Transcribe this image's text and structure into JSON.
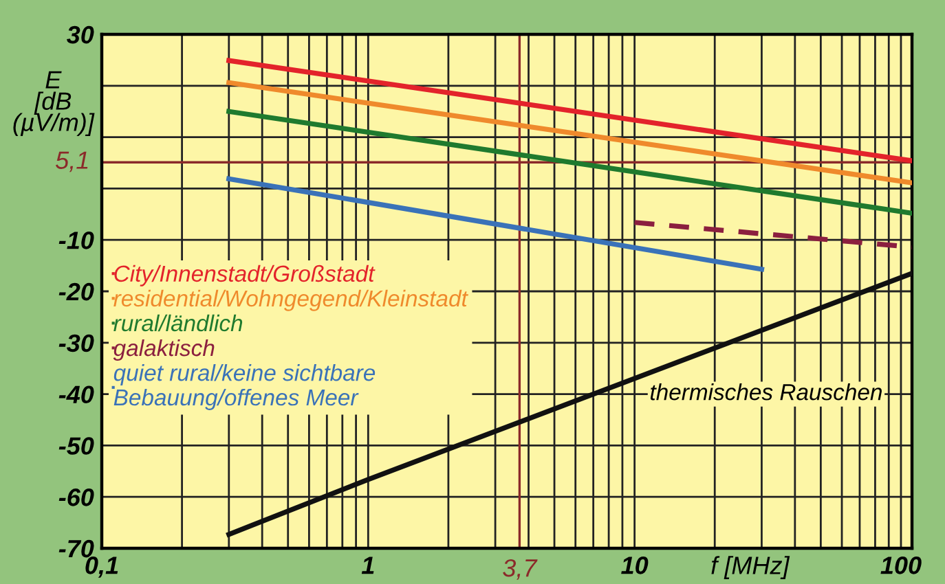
{
  "chart_data": {
    "type": "line",
    "xlabel": "f [MHz]",
    "ylabel": "E\n[dB\n(µV/m)]",
    "log": "x",
    "xlim": [
      0.1,
      110
    ],
    "ylim": [
      -70,
      30
    ],
    "xticks": [
      {
        "value": 0.1,
        "label": "0,1"
      },
      {
        "value": 0.2,
        "label": null
      },
      {
        "value": 0.3,
        "label": null
      },
      {
        "value": 0.4,
        "label": null
      },
      {
        "value": 0.5,
        "label": null
      },
      {
        "value": 0.6,
        "label": null
      },
      {
        "value": 0.7,
        "label": null
      },
      {
        "value": 0.8,
        "label": null
      },
      {
        "value": 0.9,
        "label": null
      },
      1,
      {
        "value": 2,
        "label": null
      },
      {
        "value": 3,
        "label": null
      },
      {
        "value": 4,
        "label": null
      },
      {
        "value": 5,
        "label": null
      },
      {
        "value": 6,
        "label": null
      },
      {
        "value": 7,
        "label": null
      },
      {
        "value": 8,
        "label": null
      },
      {
        "value": 9,
        "label": null
      },
      10,
      {
        "value": 20,
        "label": null
      },
      {
        "value": 30,
        "label": null
      },
      {
        "value": 40,
        "label": null
      },
      {
        "value": 50,
        "label": null
      },
      {
        "value": 60,
        "label": null
      },
      {
        "value": 70,
        "label": null
      },
      {
        "value": 80,
        "label": null
      },
      {
        "value": 90,
        "label": null
      },
      100
    ],
    "yticks": [
      30,
      {
        "value": 20,
        "label": null
      },
      {
        "value": 10,
        "label": null
      },
      {
        "value": 0,
        "label": null
      },
      -10,
      -20,
      -30,
      -40,
      -50,
      -60,
      -70
    ],
    "grid": true,
    "legend": "left",
    "marker": "none",
    "ref_lines": [
      {
        "axis": "y",
        "value": 5.1,
        "label": "5,1",
        "color": "#8b2a2a"
      },
      {
        "axis": "x",
        "value": 3.7,
        "label": "3,7",
        "color": "#8b2a2a"
      }
    ],
    "series": [
      {
        "name": "City/Innenstadt/Großstadt",
        "color": "#e3232b",
        "x": [
          0.3,
          110
        ],
        "values": [
          24.9,
          5.4
        ]
      },
      {
        "name": "residential/Wohngegend/Kleinstadt",
        "color": "#ef8a2c",
        "x": [
          0.3,
          110
        ],
        "values": [
          20.6,
          1.1
        ]
      },
      {
        "name": "rural/ländlich",
        "color": "#1f7a2e",
        "x": [
          0.3,
          110
        ],
        "values": [
          15.0,
          -4.8
        ]
      },
      {
        "name": "galaktisch",
        "color": "#8b1f3f",
        "line_style": "dashed",
        "x": [
          10,
          30,
          110
        ],
        "values": [
          -6.6,
          -8.8,
          -11.4
        ]
      },
      {
        "name": "quiet rural/keine sichtbare\nBebauung/offenes Meer",
        "color": "#3a72b8",
        "x": [
          0.3,
          30
        ],
        "values": [
          1.9,
          -15.7
        ]
      },
      {
        "color": "#111111",
        "x": [
          0.3,
          1,
          110
        ],
        "values": [
          -67.3,
          -56.6,
          -16.5
        ]
      }
    ],
    "annotations": [
      "thermisches Rauschen"
    ]
  }
}
